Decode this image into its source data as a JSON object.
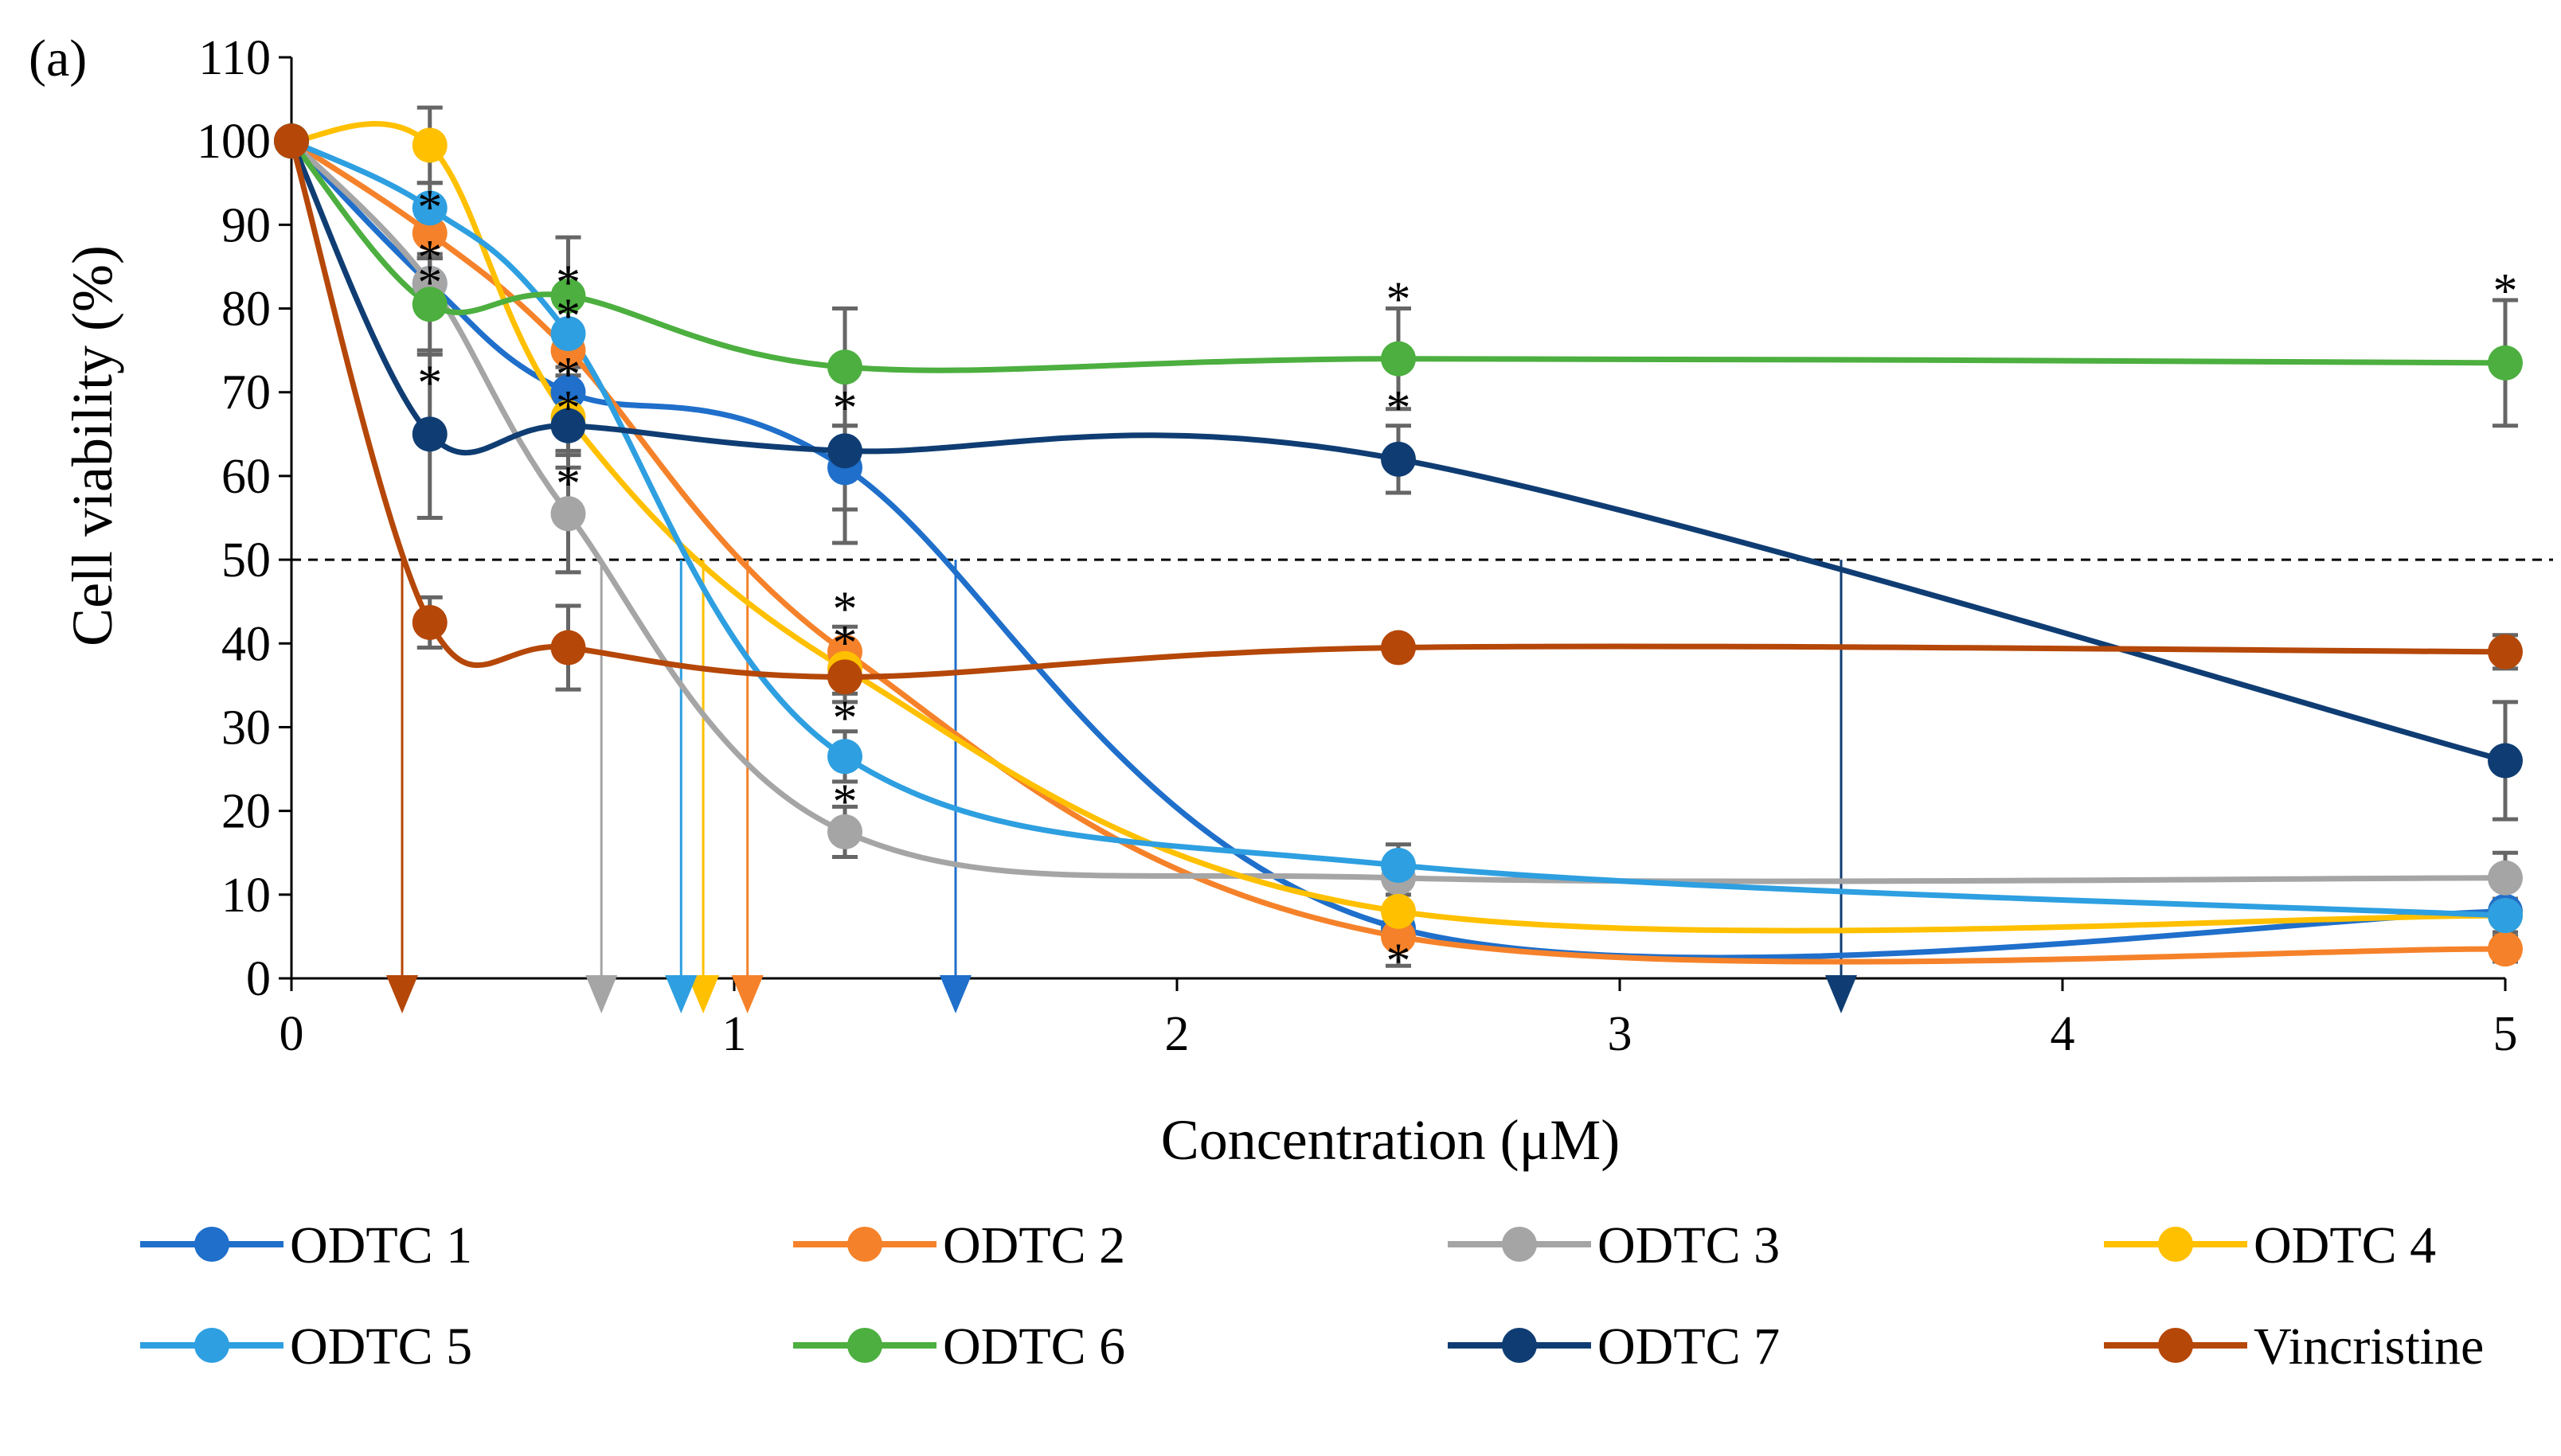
{
  "chart_data": {
    "type": "line",
    "panel_label": "(a)",
    "title": "",
    "xlabel": "Concentration (μM)",
    "ylabel": "Cell viability (%)",
    "xlim": [
      0,
      5
    ],
    "ylim": [
      0,
      110
    ],
    "x_ticks": [
      0,
      1,
      2,
      3,
      4,
      5
    ],
    "x_tick_labels": [
      "0",
      "1",
      "2",
      "3",
      "4",
      "5"
    ],
    "y_ticks": [
      0,
      10,
      20,
      30,
      40,
      50,
      60,
      70,
      80,
      90,
      100,
      110
    ],
    "y_tick_labels": [
      "0",
      "10",
      "20",
      "30",
      "40",
      "50",
      "60",
      "70",
      "80",
      "90",
      "100",
      "110"
    ],
    "grid": false,
    "legend_position": "bottom",
    "threshold_line": {
      "y": 50,
      "style": "dashed"
    },
    "x": [
      0,
      0.3125,
      0.625,
      1.25,
      2.5,
      5
    ],
    "series": [
      {
        "name": "ODTC 1",
        "color": "#1F6FCB",
        "ic50": 1.5,
        "values": [
          100,
          83,
          70,
          61,
          6,
          8
        ],
        "errors": [
          0,
          3,
          3,
          5,
          2,
          1.5
        ]
      },
      {
        "name": "ODTC 2",
        "color": "#F5822A",
        "ic50": 1.03,
        "values": [
          100,
          89,
          75,
          39,
          5,
          3.5
        ],
        "errors": [
          0,
          3,
          3,
          3,
          3.5,
          1.5
        ]
      },
      {
        "name": "ODTC 3",
        "color": "#A5A5A5",
        "ic50": 0.7,
        "values": [
          100,
          83,
          55.5,
          17.5,
          12,
          12
        ],
        "errors": [
          0,
          3,
          7,
          3,
          2,
          3
        ]
      },
      {
        "name": "ODTC 4",
        "color": "#FFC000",
        "ic50": 0.93,
        "values": [
          100,
          99.5,
          67,
          37,
          8,
          7.5
        ],
        "errors": [
          0,
          4.5,
          4,
          3,
          2,
          2
        ]
      },
      {
        "name": "ODTC 5",
        "color": "#2E9FE0",
        "ic50": 0.88,
        "values": [
          100,
          92,
          77,
          26.5,
          13.5,
          7.5
        ],
        "errors": [
          0,
          3,
          5,
          3,
          2.5,
          2
        ]
      },
      {
        "name": "ODTC 6",
        "color": "#4CAF3F",
        "ic50": null,
        "values": [
          100,
          80.5,
          81.5,
          73,
          74,
          73.5
        ],
        "errors": [
          0,
          6,
          7,
          7,
          6,
          7.5
        ]
      },
      {
        "name": "ODTC 7",
        "color": "#0F3D73",
        "ic50": 3.5,
        "values": [
          100,
          65,
          66,
          63,
          62,
          26
        ],
        "errors": [
          0,
          10,
          5,
          11,
          4,
          7
        ]
      },
      {
        "name": "Vincristine",
        "color": "#B54708",
        "ic50": 0.25,
        "values": [
          100,
          42.5,
          39.5,
          36,
          39.5,
          39
        ],
        "errors": [
          0,
          3,
          5,
          3,
          1,
          2
        ]
      }
    ],
    "significance_markers": [
      {
        "x": 0.3125,
        "y": 93,
        "label": "*"
      },
      {
        "x": 0.3125,
        "y": 87,
        "label": "*"
      },
      {
        "x": 0.3125,
        "y": 84,
        "label": "*"
      },
      {
        "x": 0.3125,
        "y": 72,
        "label": "*"
      },
      {
        "x": 0.625,
        "y": 84,
        "label": "*"
      },
      {
        "x": 0.625,
        "y": 80,
        "label": "*"
      },
      {
        "x": 0.625,
        "y": 73,
        "label": "*"
      },
      {
        "x": 0.625,
        "y": 69,
        "label": "*"
      },
      {
        "x": 0.625,
        "y": 60,
        "label": "*"
      },
      {
        "x": 1.25,
        "y": 69,
        "label": "*"
      },
      {
        "x": 1.25,
        "y": 45,
        "label": "*"
      },
      {
        "x": 1.25,
        "y": 41,
        "label": "*"
      },
      {
        "x": 1.25,
        "y": 32,
        "label": "*"
      },
      {
        "x": 1.25,
        "y": 22,
        "label": "*"
      },
      {
        "x": 2.5,
        "y": 82,
        "label": "*"
      },
      {
        "x": 2.5,
        "y": 69,
        "label": "*"
      },
      {
        "x": 2.5,
        "y": 3,
        "label": "*"
      },
      {
        "x": 5,
        "y": 83,
        "label": "*"
      }
    ]
  }
}
